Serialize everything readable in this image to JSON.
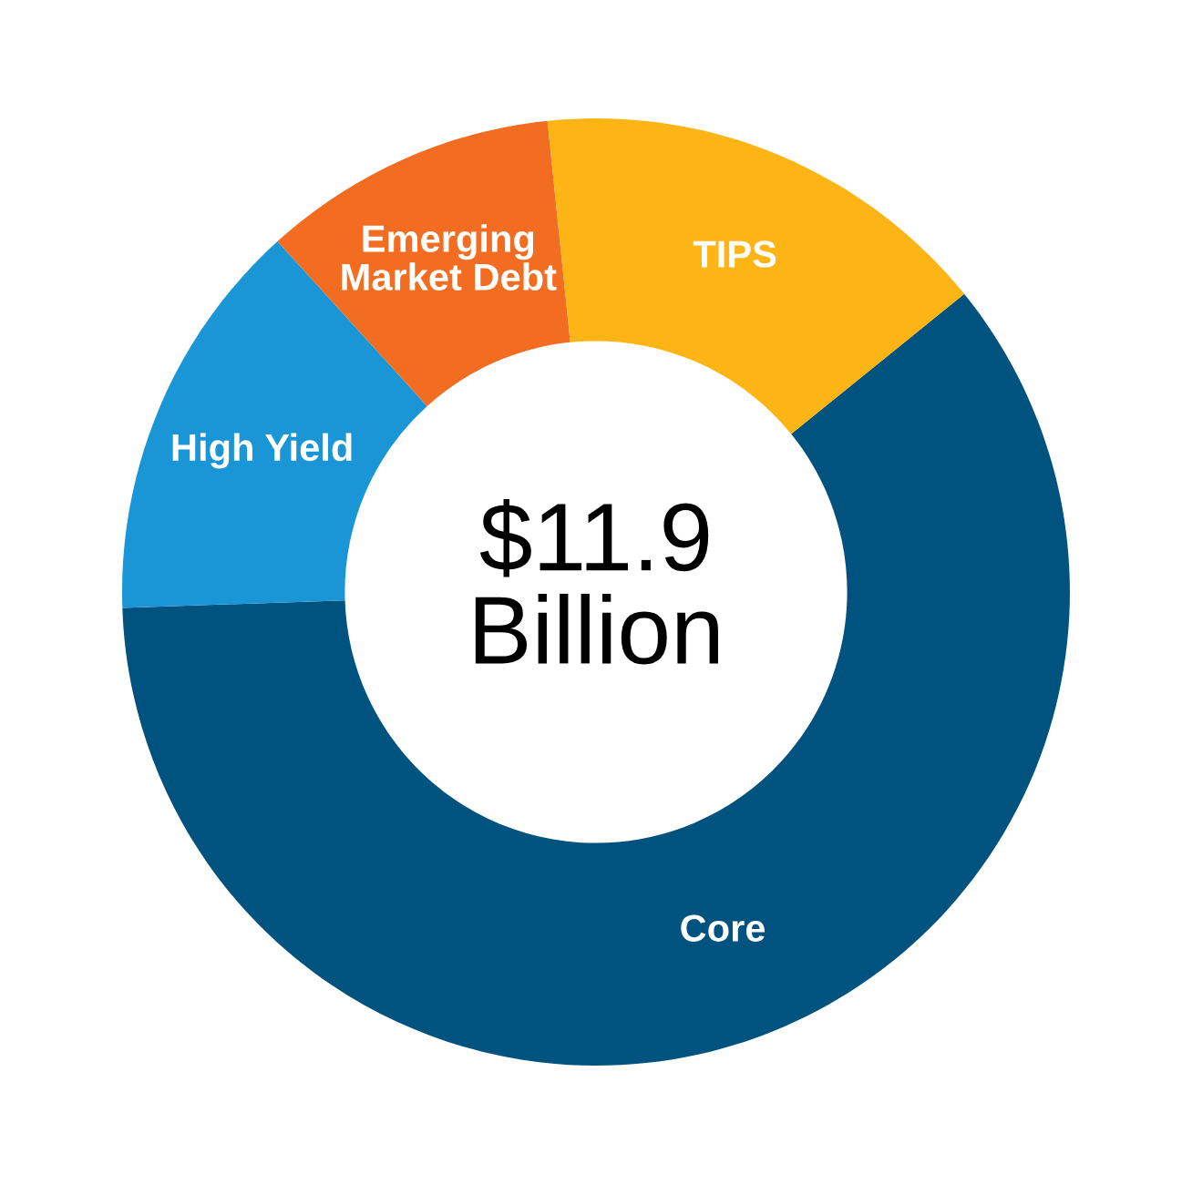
{
  "chart_data": {
    "type": "donut",
    "categories": [
      "Core",
      "High Yield",
      "Emerging\nMarket Debt",
      "TIPS"
    ],
    "values": [
      60.3,
      13.8,
      10.1,
      15.8
    ],
    "colors": [
      "#00527f",
      "#1a96d6",
      "#f26d21",
      "#fdb515"
    ],
    "annotations": [
      "$11.9\nBillion"
    ],
    "legend": false
  }
}
